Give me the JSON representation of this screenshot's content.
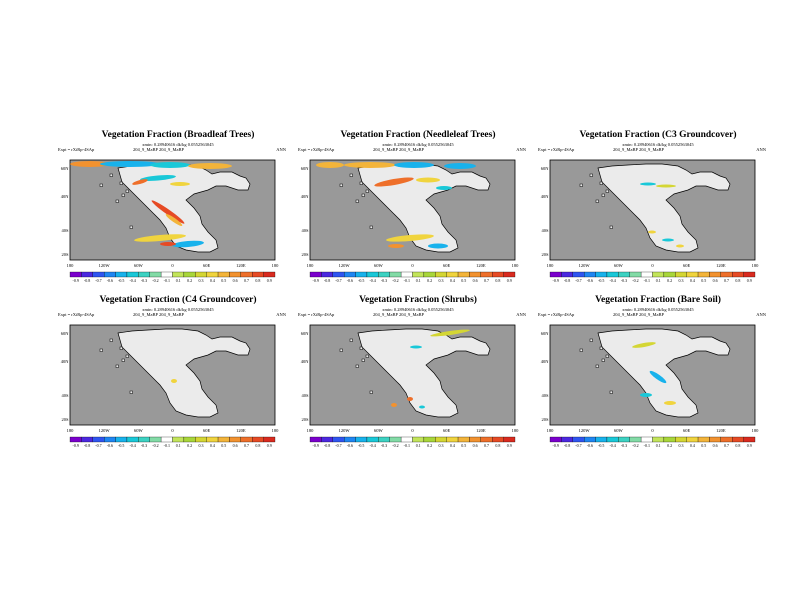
{
  "common": {
    "meta_line": "xmin: 0.28940616 dk/kg 0.0552563045",
    "expt": "Expt = rXiRp-4SAp",
    "run": "204_9_MaBP 204_9_MaBP",
    "season": "ANN",
    "lat_labels": [
      "60N",
      "40N",
      "40S",
      "20S"
    ],
    "lon_labels": [
      "180",
      "120W",
      "60W",
      "0",
      "60E",
      "120E",
      "180"
    ],
    "colorbar_labels": [
      "-0.9",
      "-0.8",
      "-0.7",
      "-0.6",
      "-0.5",
      "-0.4",
      "-0.3",
      "-0.2",
      "-0.1",
      "0.1",
      "0.2",
      "0.3",
      "0.4",
      "0.5",
      "0.6",
      "0.7",
      "0.8",
      "0.9"
    ],
    "colorbar_colors": [
      "#7a00cc",
      "#4b28e0",
      "#2f55f0",
      "#1f86f2",
      "#18b2ec",
      "#19c8d8",
      "#3cd2c2",
      "#82dba6",
      "#ffffff",
      "#c2e45a",
      "#a8d63a",
      "#d4d634",
      "#f0d43e",
      "#f3b43a",
      "#f2922f",
      "#ee6f2a",
      "#e64a24",
      "#d92a1f"
    ],
    "ocean_color": "#999999",
    "land_color": "#ebebeb"
  },
  "panels": [
    {
      "title": "Vegetation Fraction (Broadleaf Trees)"
    },
    {
      "title": "Vegetation Fraction (Needleleaf Trees)"
    },
    {
      "title": "Vegetation Fraction (C3 Groundcover)"
    },
    {
      "title": "Vegetation Fraction (C4 Groundcover)"
    },
    {
      "title": "Vegetation Fraction (Shrubs)"
    },
    {
      "title": "Vegetation Fraction (Bare Soil)"
    }
  ]
}
